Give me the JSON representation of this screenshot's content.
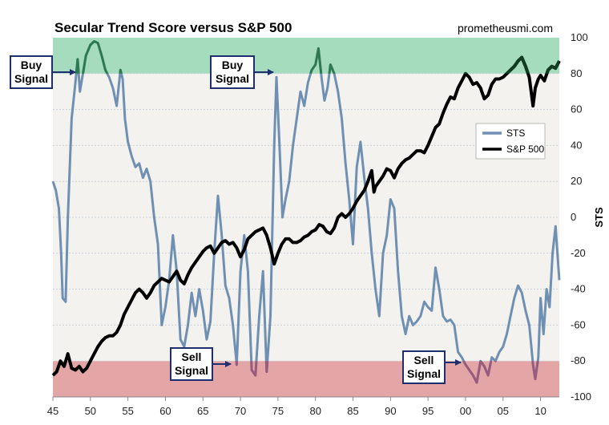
{
  "chart_data": {
    "type": "line",
    "title": "Secular Trend Score versus S&P 500",
    "source": "prometheusmi.com",
    "xlabel": "",
    "ylabel": "STS",
    "xlim": [
      1945,
      2012.5
    ],
    "ylim": [
      -100,
      100
    ],
    "x_ticks": [
      "45",
      "50",
      "55",
      "60",
      "65",
      "70",
      "75",
      "80",
      "85",
      "90",
      "95",
      "00",
      "05",
      "10"
    ],
    "y_ticks": [
      "100",
      "80",
      "60",
      "40",
      "20",
      "0",
      "-20",
      "-40",
      "-60",
      "-80",
      "-100"
    ],
    "bands": [
      {
        "name": "buy-zone",
        "from": 80,
        "to": 100,
        "color": "#a6dcbe"
      },
      {
        "name": "sell-zone",
        "from": -100,
        "to": -80,
        "color": "#e3a5a5"
      }
    ],
    "legend": {
      "position": "right",
      "entries": [
        "STS",
        "S&P 500"
      ]
    },
    "colors": {
      "sts": "#6f8fb3",
      "sp500": "#000000",
      "sts_in_buy": "#2e7a50",
      "sts_in_sell": "#9a5a7d",
      "sp_in_buy": "#0f3d22",
      "plot_bg": "#f4f2ee",
      "callout_border": "#1f2f6e"
    },
    "series": [
      {
        "name": "STS",
        "points": [
          [
            1945.0,
            20
          ],
          [
            1945.4,
            15
          ],
          [
            1945.8,
            5
          ],
          [
            1946.1,
            -20
          ],
          [
            1946.3,
            -45
          ],
          [
            1946.7,
            -47
          ],
          [
            1947.0,
            0
          ],
          [
            1947.5,
            55
          ],
          [
            1948.0,
            75
          ],
          [
            1948.3,
            88
          ],
          [
            1948.6,
            70
          ],
          [
            1949.0,
            80
          ],
          [
            1949.4,
            90
          ],
          [
            1949.7,
            93
          ],
          [
            1950.0,
            96
          ],
          [
            1950.5,
            98
          ],
          [
            1951.0,
            97
          ],
          [
            1951.5,
            90
          ],
          [
            1952.0,
            82
          ],
          [
            1952.5,
            78
          ],
          [
            1953.0,
            72
          ],
          [
            1953.5,
            62
          ],
          [
            1954.0,
            82
          ],
          [
            1954.3,
            77
          ],
          [
            1954.6,
            55
          ],
          [
            1955.0,
            42
          ],
          [
            1955.5,
            34
          ],
          [
            1956.0,
            28
          ],
          [
            1956.5,
            30
          ],
          [
            1957.0,
            22
          ],
          [
            1957.5,
            27
          ],
          [
            1958.0,
            20
          ],
          [
            1958.5,
            0
          ],
          [
            1959.0,
            -15
          ],
          [
            1959.5,
            -60
          ],
          [
            1960.0,
            -50
          ],
          [
            1960.5,
            -35
          ],
          [
            1961.0,
            -10
          ],
          [
            1961.5,
            -30
          ],
          [
            1962.0,
            -68
          ],
          [
            1962.5,
            -72
          ],
          [
            1963.0,
            -60
          ],
          [
            1963.5,
            -42
          ],
          [
            1964.0,
            -55
          ],
          [
            1964.5,
            -40
          ],
          [
            1965.0,
            -52
          ],
          [
            1965.5,
            -68
          ],
          [
            1966.0,
            -58
          ],
          [
            1966.5,
            -20
          ],
          [
            1967.0,
            12
          ],
          [
            1967.5,
            -10
          ],
          [
            1968.0,
            -38
          ],
          [
            1968.5,
            -45
          ],
          [
            1969.0,
            -60
          ],
          [
            1969.5,
            -82
          ],
          [
            1970.0,
            -30
          ],
          [
            1970.5,
            -10
          ],
          [
            1971.0,
            -30
          ],
          [
            1971.5,
            -85
          ],
          [
            1972.0,
            -88
          ],
          [
            1972.5,
            -55
          ],
          [
            1973.0,
            -30
          ],
          [
            1973.5,
            -86
          ],
          [
            1974.0,
            -55
          ],
          [
            1974.5,
            40
          ],
          [
            1974.8,
            78
          ],
          [
            1975.2,
            40
          ],
          [
            1975.6,
            0
          ],
          [
            1976.0,
            10
          ],
          [
            1976.5,
            20
          ],
          [
            1977.0,
            40
          ],
          [
            1977.5,
            55
          ],
          [
            1978.0,
            70
          ],
          [
            1978.5,
            62
          ],
          [
            1979.0,
            75
          ],
          [
            1979.5,
            82
          ],
          [
            1980.0,
            85
          ],
          [
            1980.4,
            94
          ],
          [
            1980.8,
            78
          ],
          [
            1981.2,
            65
          ],
          [
            1981.6,
            72
          ],
          [
            1982.0,
            85
          ],
          [
            1982.5,
            80
          ],
          [
            1983.0,
            70
          ],
          [
            1983.5,
            55
          ],
          [
            1984.0,
            30
          ],
          [
            1984.5,
            10
          ],
          [
            1985.0,
            -15
          ],
          [
            1985.5,
            28
          ],
          [
            1986.0,
            42
          ],
          [
            1986.5,
            22
          ],
          [
            1987.0,
            5
          ],
          [
            1987.5,
            -20
          ],
          [
            1988.0,
            -40
          ],
          [
            1988.5,
            -55
          ],
          [
            1989.0,
            -20
          ],
          [
            1989.5,
            -10
          ],
          [
            1990.0,
            10
          ],
          [
            1990.5,
            5
          ],
          [
            1991.0,
            -30
          ],
          [
            1991.5,
            -55
          ],
          [
            1992.0,
            -65
          ],
          [
            1992.5,
            -55
          ],
          [
            1993.0,
            -60
          ],
          [
            1993.5,
            -58
          ],
          [
            1994.0,
            -55
          ],
          [
            1994.5,
            -47
          ],
          [
            1995.0,
            -50
          ],
          [
            1995.5,
            -52
          ],
          [
            1996.0,
            -28
          ],
          [
            1996.5,
            -40
          ],
          [
            1997.0,
            -55
          ],
          [
            1997.5,
            -58
          ],
          [
            1998.0,
            -57
          ],
          [
            1998.5,
            -60
          ],
          [
            1999.0,
            -75
          ],
          [
            1999.5,
            -78
          ],
          [
            2000.0,
            -82
          ],
          [
            2000.5,
            -85
          ],
          [
            2001.0,
            -88
          ],
          [
            2001.5,
            -92
          ],
          [
            2002.0,
            -80
          ],
          [
            2002.5,
            -83
          ],
          [
            2003.0,
            -88
          ],
          [
            2003.5,
            -78
          ],
          [
            2004.0,
            -80
          ],
          [
            2004.5,
            -75
          ],
          [
            2005.0,
            -72
          ],
          [
            2005.5,
            -65
          ],
          [
            2006.0,
            -55
          ],
          [
            2006.5,
            -45
          ],
          [
            2007.0,
            -38
          ],
          [
            2007.5,
            -42
          ],
          [
            2008.0,
            -52
          ],
          [
            2008.5,
            -60
          ],
          [
            2009.0,
            -82
          ],
          [
            2009.3,
            -90
          ],
          [
            2009.7,
            -78
          ],
          [
            2010.0,
            -45
          ],
          [
            2010.4,
            -65
          ],
          [
            2010.8,
            -40
          ],
          [
            2011.2,
            -50
          ],
          [
            2011.6,
            -20
          ],
          [
            2012.0,
            -5
          ],
          [
            2012.5,
            -35
          ]
        ]
      },
      {
        "name": "S&P 500",
        "points": [
          [
            1945.0,
            -88
          ],
          [
            1945.5,
            -86
          ],
          [
            1946.0,
            -80
          ],
          [
            1946.5,
            -83
          ],
          [
            1947.0,
            -76
          ],
          [
            1947.5,
            -84
          ],
          [
            1948.0,
            -85
          ],
          [
            1948.5,
            -83
          ],
          [
            1949.0,
            -86
          ],
          [
            1949.5,
            -84
          ],
          [
            1950.0,
            -80
          ],
          [
            1950.5,
            -76
          ],
          [
            1951.0,
            -72
          ],
          [
            1951.5,
            -69
          ],
          [
            1952.0,
            -67
          ],
          [
            1952.5,
            -66
          ],
          [
            1953.0,
            -66
          ],
          [
            1953.5,
            -64
          ],
          [
            1954.0,
            -60
          ],
          [
            1954.5,
            -54
          ],
          [
            1955.0,
            -50
          ],
          [
            1955.5,
            -46
          ],
          [
            1956.0,
            -42
          ],
          [
            1956.5,
            -40
          ],
          [
            1957.0,
            -42
          ],
          [
            1957.5,
            -45
          ],
          [
            1958.0,
            -42
          ],
          [
            1958.5,
            -38
          ],
          [
            1959.0,
            -36
          ],
          [
            1959.5,
            -34
          ],
          [
            1960.0,
            -35
          ],
          [
            1960.5,
            -36
          ],
          [
            1961.0,
            -33
          ],
          [
            1961.5,
            -30
          ],
          [
            1962.0,
            -35
          ],
          [
            1962.5,
            -37
          ],
          [
            1963.0,
            -32
          ],
          [
            1963.5,
            -28
          ],
          [
            1964.0,
            -25
          ],
          [
            1964.5,
            -22
          ],
          [
            1965.0,
            -19
          ],
          [
            1965.5,
            -17
          ],
          [
            1966.0,
            -16
          ],
          [
            1966.5,
            -20
          ],
          [
            1967.0,
            -17
          ],
          [
            1967.5,
            -14
          ],
          [
            1968.0,
            -13
          ],
          [
            1968.5,
            -15
          ],
          [
            1969.0,
            -14
          ],
          [
            1969.5,
            -17
          ],
          [
            1970.0,
            -22
          ],
          [
            1970.5,
            -18
          ],
          [
            1971.0,
            -12
          ],
          [
            1971.5,
            -10
          ],
          [
            1972.0,
            -8
          ],
          [
            1972.5,
            -7
          ],
          [
            1973.0,
            -6
          ],
          [
            1973.5,
            -10
          ],
          [
            1974.0,
            -17
          ],
          [
            1974.5,
            -26
          ],
          [
            1975.0,
            -20
          ],
          [
            1975.5,
            -15
          ],
          [
            1976.0,
            -12
          ],
          [
            1976.5,
            -12
          ],
          [
            1977.0,
            -14
          ],
          [
            1977.5,
            -14
          ],
          [
            1978.0,
            -13
          ],
          [
            1978.5,
            -11
          ],
          [
            1979.0,
            -10
          ],
          [
            1979.5,
            -8
          ],
          [
            1980.0,
            -7
          ],
          [
            1980.5,
            -4
          ],
          [
            1981.0,
            -5
          ],
          [
            1981.5,
            -8
          ],
          [
            1982.0,
            -9
          ],
          [
            1982.5,
            -6
          ],
          [
            1983.0,
            0
          ],
          [
            1983.5,
            2
          ],
          [
            1984.0,
            0
          ],
          [
            1984.5,
            2
          ],
          [
            1985.0,
            5
          ],
          [
            1985.5,
            9
          ],
          [
            1986.0,
            12
          ],
          [
            1986.5,
            15
          ],
          [
            1987.0,
            20
          ],
          [
            1987.5,
            26
          ],
          [
            1987.8,
            14
          ],
          [
            1988.0,
            17
          ],
          [
            1988.5,
            20
          ],
          [
            1989.0,
            23
          ],
          [
            1989.5,
            27
          ],
          [
            1990.0,
            26
          ],
          [
            1990.5,
            22
          ],
          [
            1991.0,
            27
          ],
          [
            1991.5,
            30
          ],
          [
            1992.0,
            32
          ],
          [
            1992.5,
            33
          ],
          [
            1993.0,
            35
          ],
          [
            1993.5,
            37
          ],
          [
            1994.0,
            37
          ],
          [
            1994.5,
            36
          ],
          [
            1995.0,
            40
          ],
          [
            1995.5,
            45
          ],
          [
            1996.0,
            50
          ],
          [
            1996.5,
            52
          ],
          [
            1997.0,
            58
          ],
          [
            1997.5,
            63
          ],
          [
            1998.0,
            67
          ],
          [
            1998.5,
            66
          ],
          [
            1999.0,
            72
          ],
          [
            1999.5,
            76
          ],
          [
            2000.0,
            80
          ],
          [
            2000.5,
            78
          ],
          [
            2001.0,
            74
          ],
          [
            2001.5,
            75
          ],
          [
            2002.0,
            72
          ],
          [
            2002.5,
            66
          ],
          [
            2003.0,
            68
          ],
          [
            2003.5,
            74
          ],
          [
            2004.0,
            77
          ],
          [
            2004.5,
            77
          ],
          [
            2005.0,
            78
          ],
          [
            2005.5,
            80
          ],
          [
            2006.0,
            82
          ],
          [
            2006.5,
            84
          ],
          [
            2007.0,
            87
          ],
          [
            2007.5,
            89
          ],
          [
            2008.0,
            84
          ],
          [
            2008.5,
            78
          ],
          [
            2009.0,
            62
          ],
          [
            2009.3,
            72
          ],
          [
            2009.7,
            77
          ],
          [
            2010.0,
            79
          ],
          [
            2010.5,
            76
          ],
          [
            2011.0,
            82
          ],
          [
            2011.5,
            84
          ],
          [
            2012.0,
            83
          ],
          [
            2012.5,
            87
          ]
        ]
      }
    ],
    "annotations": [
      {
        "id": "buy-1",
        "lines": [
          "Buy",
          "Signal"
        ],
        "anchor": [
          1948.4,
          82
        ]
      },
      {
        "id": "buy-2",
        "lines": [
          "Buy",
          "Signal"
        ],
        "anchor": [
          1975.2,
          82
        ]
      },
      {
        "id": "sell-1",
        "lines": [
          "Sell",
          "Signal"
        ],
        "anchor": [
          1969.6,
          -82
        ]
      },
      {
        "id": "sell-2",
        "lines": [
          "Sell",
          "Signal"
        ],
        "anchor": [
          1999.8,
          -79
        ]
      }
    ]
  }
}
